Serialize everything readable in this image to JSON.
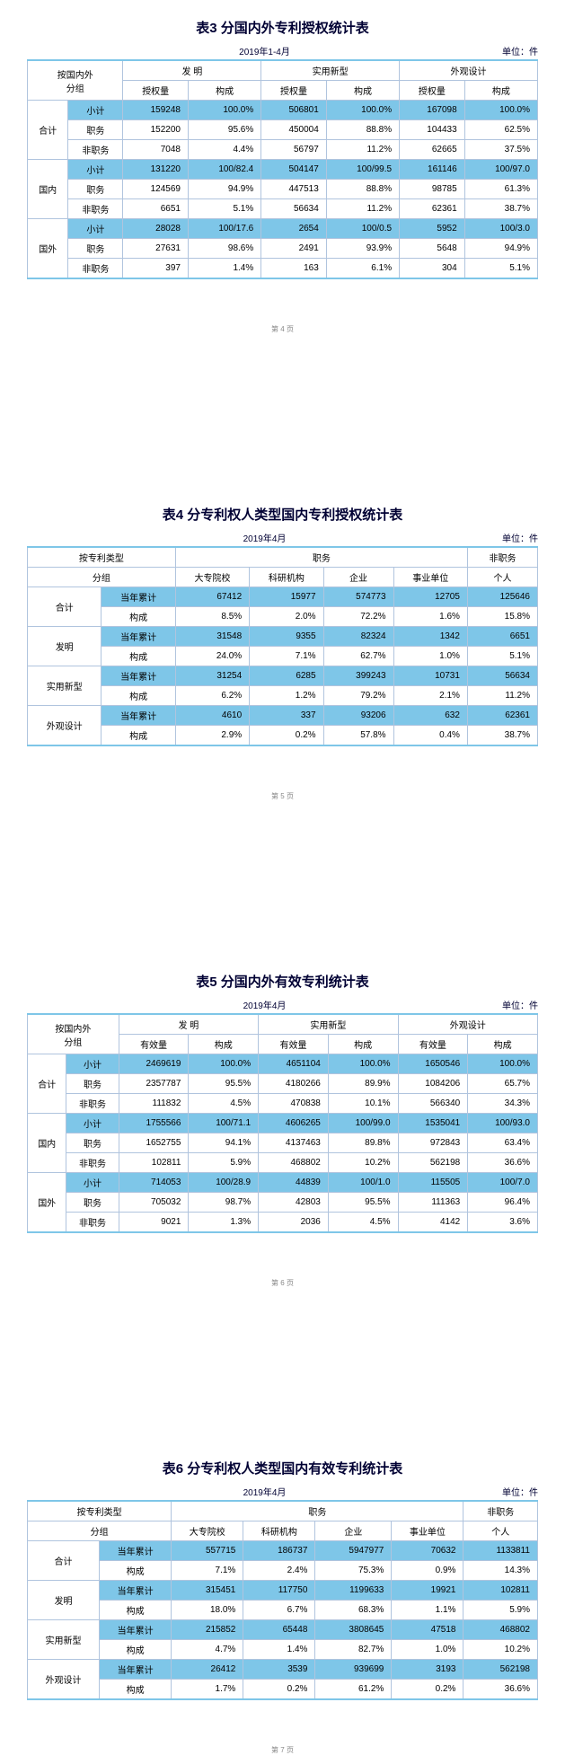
{
  "colors": {
    "highlight": "#7ec6e8",
    "border": "#b0c4de",
    "title": "#000033"
  },
  "page4": {
    "title": "表3  分国内外专利授权统计表",
    "period": "2019年1-4月",
    "unit": "单位：件",
    "pageNum": "第 4 页",
    "rowHeader1": "按国内外",
    "rowHeader2": "分组",
    "groupHeaders": [
      "发  明",
      "实用新型",
      "外观设计"
    ],
    "subHeaders": [
      "授权量",
      "构成",
      "授权量",
      "构成",
      "授权量",
      "构成"
    ],
    "sections": [
      {
        "name": "合计",
        "rows": [
          {
            "label": "小计",
            "hl": true,
            "cells": [
              "159248",
              "100.0%",
              "506801",
              "100.0%",
              "167098",
              "100.0%"
            ]
          },
          {
            "label": "职务",
            "hl": false,
            "cells": [
              "152200",
              "95.6%",
              "450004",
              "88.8%",
              "104433",
              "62.5%"
            ]
          },
          {
            "label": "非职务",
            "hl": false,
            "cells": [
              "7048",
              "4.4%",
              "56797",
              "11.2%",
              "62665",
              "37.5%"
            ]
          }
        ]
      },
      {
        "name": "国内",
        "rows": [
          {
            "label": "小计",
            "hl": true,
            "cells": [
              "131220",
              "100/82.4",
              "504147",
              "100/99.5",
              "161146",
              "100/97.0"
            ]
          },
          {
            "label": "职务",
            "hl": false,
            "cells": [
              "124569",
              "94.9%",
              "447513",
              "88.8%",
              "98785",
              "61.3%"
            ]
          },
          {
            "label": "非职务",
            "hl": false,
            "cells": [
              "6651",
              "5.1%",
              "56634",
              "11.2%",
              "62361",
              "38.7%"
            ]
          }
        ]
      },
      {
        "name": "国外",
        "rows": [
          {
            "label": "小计",
            "hl": true,
            "cells": [
              "28028",
              "100/17.6",
              "2654",
              "100/0.5",
              "5952",
              "100/3.0"
            ]
          },
          {
            "label": "职务",
            "hl": false,
            "cells": [
              "27631",
              "98.6%",
              "2491",
              "93.9%",
              "5648",
              "94.9%"
            ]
          },
          {
            "label": "非职务",
            "hl": false,
            "cells": [
              "397",
              "1.4%",
              "163",
              "6.1%",
              "304",
              "5.1%"
            ]
          }
        ]
      }
    ]
  },
  "page5": {
    "title": "表4  分专利权人类型国内专利授权统计表",
    "period": "2019年4月",
    "unit": "单位：件",
    "pageNum": "第 5 页",
    "rowHeader1": "按专利类型",
    "rowHeader2": "分组",
    "topGroup1": "职务",
    "topGroup2": "非职务",
    "colHeaders": [
      "大专院校",
      "科研机构",
      "企业",
      "事业单位",
      "个人"
    ],
    "sections": [
      {
        "name": "合计",
        "rows": [
          {
            "label": "当年累计",
            "hl": true,
            "cells": [
              "67412",
              "15977",
              "574773",
              "12705",
              "125646"
            ]
          },
          {
            "label": "构成",
            "hl": false,
            "cells": [
              "8.5%",
              "2.0%",
              "72.2%",
              "1.6%",
              "15.8%"
            ]
          }
        ]
      },
      {
        "name": "发明",
        "rows": [
          {
            "label": "当年累计",
            "hl": true,
            "cells": [
              "31548",
              "9355",
              "82324",
              "1342",
              "6651"
            ]
          },
          {
            "label": "构成",
            "hl": false,
            "cells": [
              "24.0%",
              "7.1%",
              "62.7%",
              "1.0%",
              "5.1%"
            ]
          }
        ]
      },
      {
        "name": "实用新型",
        "rows": [
          {
            "label": "当年累计",
            "hl": true,
            "cells": [
              "31254",
              "6285",
              "399243",
              "10731",
              "56634"
            ]
          },
          {
            "label": "构成",
            "hl": false,
            "cells": [
              "6.2%",
              "1.2%",
              "79.2%",
              "2.1%",
              "11.2%"
            ]
          }
        ]
      },
      {
        "name": "外观设计",
        "rows": [
          {
            "label": "当年累计",
            "hl": true,
            "cells": [
              "4610",
              "337",
              "93206",
              "632",
              "62361"
            ]
          },
          {
            "label": "构成",
            "hl": false,
            "cells": [
              "2.9%",
              "0.2%",
              "57.8%",
              "0.4%",
              "38.7%"
            ]
          }
        ]
      }
    ]
  },
  "page6": {
    "title": "表5  分国内外有效专利统计表",
    "period": "2019年4月",
    "unit": "单位：件",
    "pageNum": "第 6 页",
    "rowHeader1": "按国内外",
    "rowHeader2": "分组",
    "groupHeaders": [
      "发  明",
      "实用新型",
      "外观设计"
    ],
    "subHeaders": [
      "有效量",
      "构成",
      "有效量",
      "构成",
      "有效量",
      "构成"
    ],
    "sections": [
      {
        "name": "合计",
        "rows": [
          {
            "label": "小计",
            "hl": true,
            "cells": [
              "2469619",
              "100.0%",
              "4651104",
              "100.0%",
              "1650546",
              "100.0%"
            ]
          },
          {
            "label": "职务",
            "hl": false,
            "cells": [
              "2357787",
              "95.5%",
              "4180266",
              "89.9%",
              "1084206",
              "65.7%"
            ]
          },
          {
            "label": "非职务",
            "hl": false,
            "cells": [
              "111832",
              "4.5%",
              "470838",
              "10.1%",
              "566340",
              "34.3%"
            ]
          }
        ]
      },
      {
        "name": "国内",
        "rows": [
          {
            "label": "小计",
            "hl": true,
            "cells": [
              "1755566",
              "100/71.1",
              "4606265",
              "100/99.0",
              "1535041",
              "100/93.0"
            ]
          },
          {
            "label": "职务",
            "hl": false,
            "cells": [
              "1652755",
              "94.1%",
              "4137463",
              "89.8%",
              "972843",
              "63.4%"
            ]
          },
          {
            "label": "非职务",
            "hl": false,
            "cells": [
              "102811",
              "5.9%",
              "468802",
              "10.2%",
              "562198",
              "36.6%"
            ]
          }
        ]
      },
      {
        "name": "国外",
        "rows": [
          {
            "label": "小计",
            "hl": true,
            "cells": [
              "714053",
              "100/28.9",
              "44839",
              "100/1.0",
              "115505",
              "100/7.0"
            ]
          },
          {
            "label": "职务",
            "hl": false,
            "cells": [
              "705032",
              "98.7%",
              "42803",
              "95.5%",
              "111363",
              "96.4%"
            ]
          },
          {
            "label": "非职务",
            "hl": false,
            "cells": [
              "9021",
              "1.3%",
              "2036",
              "4.5%",
              "4142",
              "3.6%"
            ]
          }
        ]
      }
    ]
  },
  "page7": {
    "title": "表6  分专利权人类型国内有效专利统计表",
    "period": "2019年4月",
    "unit": "单位：件",
    "pageNum": "第 7 页",
    "rowHeader1": "按专利类型",
    "rowHeader2": "分组",
    "topGroup1": "职务",
    "topGroup2": "非职务",
    "colHeaders": [
      "大专院校",
      "科研机构",
      "企业",
      "事业单位",
      "个人"
    ],
    "sections": [
      {
        "name": "合计",
        "rows": [
          {
            "label": "当年累计",
            "hl": true,
            "cells": [
              "557715",
              "186737",
              "5947977",
              "70632",
              "1133811"
            ]
          },
          {
            "label": "构成",
            "hl": false,
            "cells": [
              "7.1%",
              "2.4%",
              "75.3%",
              "0.9%",
              "14.3%"
            ]
          }
        ]
      },
      {
        "name": "发明",
        "rows": [
          {
            "label": "当年累计",
            "hl": true,
            "cells": [
              "315451",
              "117750",
              "1199633",
              "19921",
              "102811"
            ]
          },
          {
            "label": "构成",
            "hl": false,
            "cells": [
              "18.0%",
              "6.7%",
              "68.3%",
              "1.1%",
              "5.9%"
            ]
          }
        ]
      },
      {
        "name": "实用新型",
        "rows": [
          {
            "label": "当年累计",
            "hl": true,
            "cells": [
              "215852",
              "65448",
              "3808645",
              "47518",
              "468802"
            ]
          },
          {
            "label": "构成",
            "hl": false,
            "cells": [
              "4.7%",
              "1.4%",
              "82.7%",
              "1.0%",
              "10.2%"
            ]
          }
        ]
      },
      {
        "name": "外观设计",
        "rows": [
          {
            "label": "当年累计",
            "hl": true,
            "cells": [
              "26412",
              "3539",
              "939699",
              "3193",
              "562198"
            ]
          },
          {
            "label": "构成",
            "hl": false,
            "cells": [
              "1.7%",
              "0.2%",
              "61.2%",
              "0.2%",
              "36.6%"
            ]
          }
        ]
      }
    ]
  }
}
